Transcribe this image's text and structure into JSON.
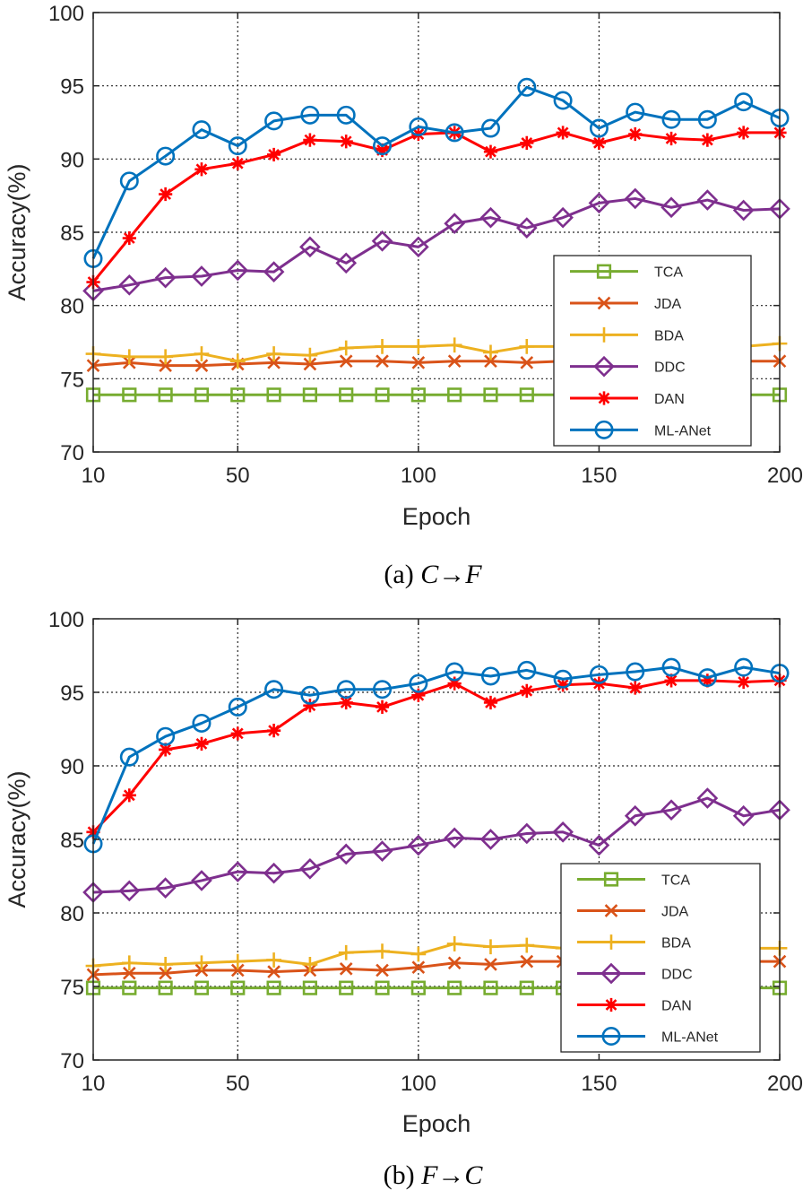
{
  "colors": {
    "TCA": "#77AC30",
    "JDA": "#D95319",
    "BDA": "#EDB120",
    "DDC": "#7E2F8E",
    "DAN": "#FF0000",
    "ML-ANet": "#0072BD",
    "axis": "#262626",
    "grid": "#262626"
  },
  "chart_data": [
    {
      "type": "line",
      "caption": {
        "label": "(a)",
        "expr": "C→F"
      },
      "xlabel": "Epoch",
      "ylabel": "Accuracy(%)",
      "xlim": [
        10,
        200
      ],
      "ylim": [
        70,
        100
      ],
      "xticks": [
        10,
        50,
        100,
        150,
        200
      ],
      "yticks": [
        70,
        75,
        80,
        85,
        90,
        95,
        100
      ],
      "grid": true,
      "legend_position": "right",
      "x": [
        10,
        20,
        30,
        40,
        50,
        60,
        70,
        80,
        90,
        100,
        110,
        120,
        130,
        140,
        150,
        160,
        170,
        180,
        190,
        200
      ],
      "series": [
        {
          "name": "TCA",
          "marker": "square",
          "values": [
            73.9,
            73.9,
            73.9,
            73.9,
            73.9,
            73.9,
            73.9,
            73.9,
            73.9,
            73.9,
            73.9,
            73.9,
            73.9,
            73.9,
            73.9,
            73.9,
            73.9,
            73.9,
            73.9,
            73.9
          ]
        },
        {
          "name": "JDA",
          "marker": "x",
          "values": [
            75.9,
            76.1,
            75.9,
            75.9,
            76.0,
            76.1,
            76.0,
            76.2,
            76.2,
            76.1,
            76.2,
            76.2,
            76.1,
            76.2,
            76.2,
            76.2,
            76.2,
            76.2,
            76.2,
            76.2
          ]
        },
        {
          "name": "BDA",
          "marker": "plus",
          "values": [
            76.7,
            76.5,
            76.5,
            76.7,
            76.2,
            76.7,
            76.6,
            77.1,
            77.2,
            77.2,
            77.3,
            76.8,
            77.2,
            77.2,
            77.2,
            77.2,
            77.2,
            77.2,
            77.2,
            77.4
          ]
        },
        {
          "name": "DDC",
          "marker": "diamond",
          "values": [
            81.0,
            81.4,
            81.9,
            82.0,
            82.4,
            82.3,
            84.0,
            82.9,
            84.4,
            84.0,
            85.6,
            86.0,
            85.3,
            86.0,
            87.0,
            87.3,
            86.7,
            87.2,
            86.5,
            86.6
          ]
        },
        {
          "name": "DAN",
          "marker": "star",
          "values": [
            81.6,
            84.6,
            87.6,
            89.3,
            89.7,
            90.3,
            91.3,
            91.2,
            90.6,
            91.7,
            91.8,
            90.5,
            91.1,
            91.8,
            91.1,
            91.7,
            91.4,
            91.3,
            91.8,
            91.8
          ]
        },
        {
          "name": "ML-ANet",
          "marker": "circle",
          "values": [
            83.2,
            88.5,
            90.2,
            92.0,
            90.9,
            92.6,
            93.0,
            93.0,
            90.9,
            92.2,
            91.8,
            92.1,
            94.9,
            94.0,
            92.1,
            93.2,
            92.7,
            92.7,
            93.9,
            92.8
          ]
        }
      ]
    },
    {
      "type": "line",
      "caption": {
        "label": "(b)",
        "expr": "F→C"
      },
      "xlabel": "Epoch",
      "ylabel": "Accuracy(%)",
      "xlim": [
        10,
        200
      ],
      "ylim": [
        70,
        100
      ],
      "xticks": [
        10,
        50,
        100,
        150,
        200
      ],
      "yticks": [
        70,
        75,
        80,
        85,
        90,
        95,
        100
      ],
      "grid": true,
      "legend_position": "right",
      "x": [
        10,
        20,
        30,
        40,
        50,
        60,
        70,
        80,
        90,
        100,
        110,
        120,
        130,
        140,
        150,
        160,
        170,
        180,
        190,
        200
      ],
      "series": [
        {
          "name": "TCA",
          "marker": "square",
          "values": [
            74.9,
            74.9,
            74.9,
            74.9,
            74.9,
            74.9,
            74.9,
            74.9,
            74.9,
            74.9,
            74.9,
            74.9,
            74.9,
            74.9,
            74.9,
            74.9,
            74.9,
            74.9,
            74.9,
            74.9
          ]
        },
        {
          "name": "JDA",
          "marker": "x",
          "values": [
            75.8,
            75.9,
            75.9,
            76.1,
            76.1,
            76.0,
            76.1,
            76.2,
            76.1,
            76.3,
            76.6,
            76.5,
            76.7,
            76.7,
            76.7,
            76.7,
            76.7,
            76.7,
            76.7,
            76.7
          ]
        },
        {
          "name": "BDA",
          "marker": "plus",
          "values": [
            76.4,
            76.6,
            76.5,
            76.6,
            76.7,
            76.8,
            76.5,
            77.3,
            77.4,
            77.2,
            77.9,
            77.7,
            77.8,
            77.6,
            77.6,
            77.6,
            77.6,
            77.6,
            77.6,
            77.6
          ]
        },
        {
          "name": "DDC",
          "marker": "diamond",
          "values": [
            81.4,
            81.5,
            81.7,
            82.2,
            82.8,
            82.7,
            83.0,
            84.0,
            84.2,
            84.6,
            85.1,
            85.0,
            85.4,
            85.5,
            84.6,
            86.6,
            87.0,
            87.8,
            86.6,
            87.0
          ]
        },
        {
          "name": "DAN",
          "marker": "star",
          "values": [
            85.5,
            88.0,
            91.1,
            91.5,
            92.2,
            92.4,
            94.1,
            94.3,
            94.0,
            94.8,
            95.6,
            94.3,
            95.1,
            95.5,
            95.6,
            95.3,
            95.8,
            95.8,
            95.7,
            95.8
          ]
        },
        {
          "name": "ML-ANet",
          "marker": "circle",
          "values": [
            84.7,
            90.6,
            92.0,
            92.9,
            94.0,
            95.2,
            94.8,
            95.2,
            95.2,
            95.6,
            96.4,
            96.1,
            96.5,
            95.9,
            96.2,
            96.4,
            96.7,
            96.0,
            96.7,
            96.3
          ]
        }
      ]
    }
  ]
}
